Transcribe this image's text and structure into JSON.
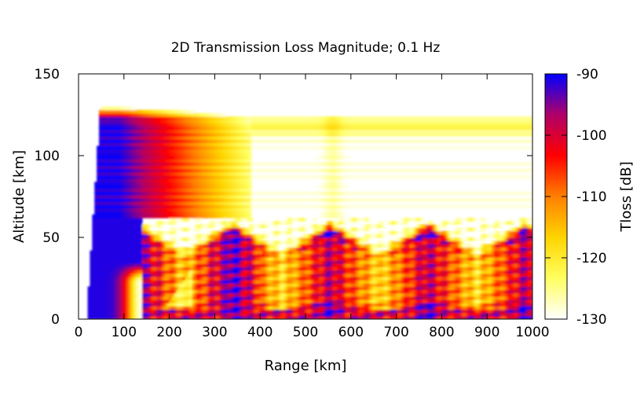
{
  "chart_data": {
    "type": "heatmap",
    "title": "2D Transmission Loss Magnitude; 0.1 Hz",
    "xlabel": "Range [km]",
    "ylabel": "Altitude [km]",
    "xlim": [
      0,
      1000
    ],
    "ylim": [
      0,
      150
    ],
    "x_ticks": [
      "0",
      "100",
      "200",
      "300",
      "400",
      "500",
      "600",
      "700",
      "800",
      "900",
      "1000"
    ],
    "y_ticks": [
      "0",
      "50",
      "100",
      "150"
    ],
    "colorbar": {
      "label": "Tloss [dB]",
      "range": [
        -130,
        -90
      ],
      "ticks": [
        "-90",
        "-100",
        "-110",
        "-120",
        "-130"
      ],
      "palette": [
        "#ffffff",
        "#ffff60",
        "#ffd400",
        "#ff8000",
        "#ff0000",
        "#b00068",
        "#0000ff"
      ]
    },
    "grid": false
  }
}
